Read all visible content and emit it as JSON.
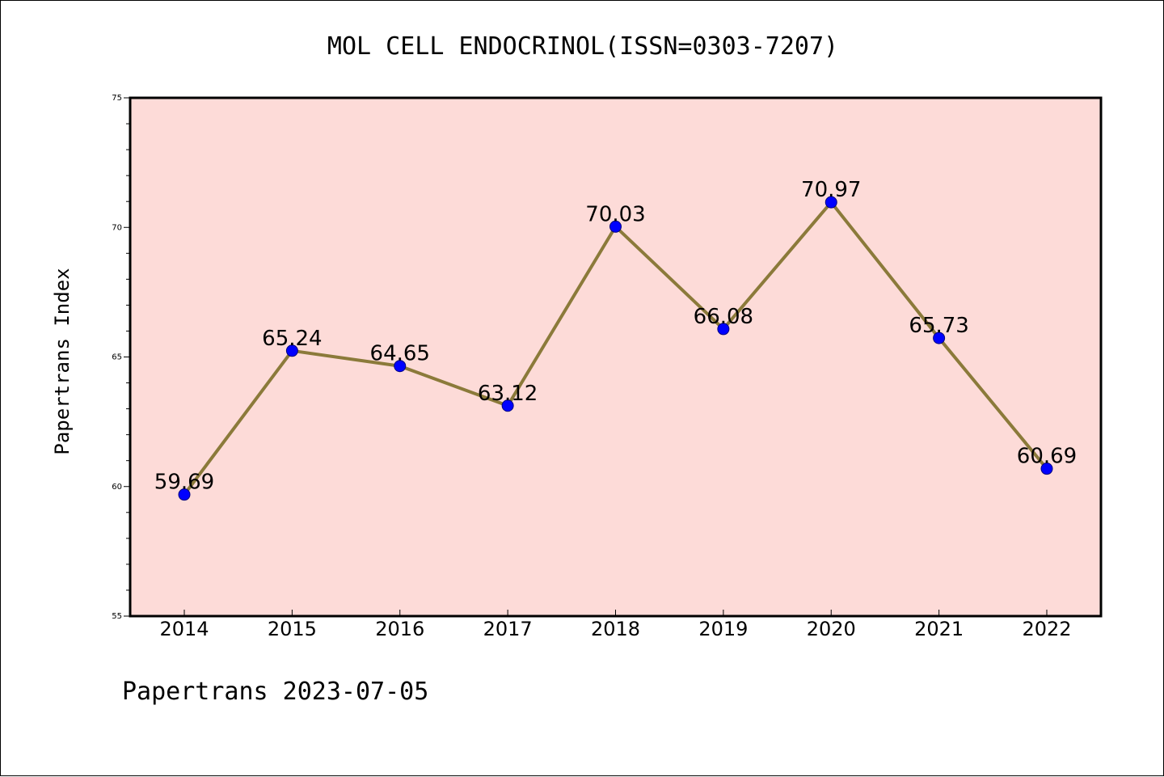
{
  "chart_data": {
    "type": "line",
    "title": "MOL CELL ENDOCRINOL(ISSN=0303-7207)",
    "xlabel": "",
    "ylabel": "Papertrans Index",
    "footer": "Papertrans 2023-07-05",
    "categories": [
      "2014",
      "2015",
      "2016",
      "2017",
      "2018",
      "2019",
      "2020",
      "2021",
      "2022"
    ],
    "series": [
      {
        "values": [
          59.69,
          65.24,
          64.65,
          63.12,
          70.03,
          66.08,
          70.97,
          65.73,
          60.69
        ],
        "labels": [
          "59.69",
          "65.24",
          "64.65",
          "63.12",
          "70.03",
          "66.08",
          "70.97",
          "65.73",
          "60.69"
        ]
      }
    ],
    "ylim": [
      55,
      75
    ],
    "yticks": [
      "55",
      "60",
      "65",
      "70",
      "75"
    ],
    "yminor_step": 1,
    "grid": false,
    "legend": "none",
    "colors": {
      "plot_background": "#fddbd8",
      "line": "#8b7a3a",
      "marker": "#0000ff",
      "axes": "#000000"
    }
  }
}
